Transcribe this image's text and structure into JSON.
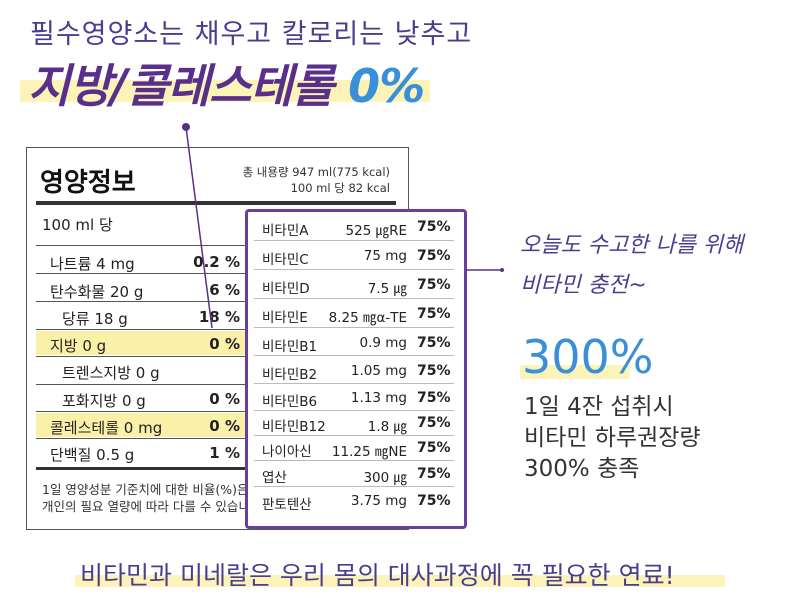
{
  "header": {
    "subtitle": "필수영양소는 채우고 칼로리는 낮추고",
    "headline_text": "지방/콜레스테롤 ",
    "headline_pct": "0%"
  },
  "nutrition": {
    "title": "영양정보",
    "meta_line1": "총 내용량 947 ml(775 kcal)",
    "meta_line2": "100 ml 당 82 kcal",
    "per": "100 ml 당",
    "rows": [
      {
        "name": "나트륨 4 mg",
        "value": "0.2 %"
      },
      {
        "name": "탄수화물 20 g",
        "value": "6 %"
      },
      {
        "name": "당류 18 g",
        "value": "18 %"
      },
      {
        "name": "지방 0 g",
        "value": "0 %"
      },
      {
        "name": "트렌스지방 0 g",
        "value": ""
      },
      {
        "name": "포화지방 0 g",
        "value": "0 %"
      },
      {
        "name": "콜레스테롤 0 mg",
        "value": "0 %"
      },
      {
        "name": "단백질 0.5 g",
        "value": "1 %"
      }
    ],
    "footnote1": "1일 영양성분 기준치에 대한 비율(%)은",
    "footnote2": "개인의 필요 열량에 따라 다를 수 있습니"
  },
  "vitamins": [
    {
      "name": "비타민A",
      "amount": "525 ㎍RE",
      "pct": "75%"
    },
    {
      "name": "비타민C",
      "amount": "75 mg",
      "pct": "75%"
    },
    {
      "name": "비타민D",
      "amount": "7.5 ㎍",
      "pct": "75%"
    },
    {
      "name": "비타민E",
      "amount": "8.25 ㎎α-TE",
      "pct": "75%"
    },
    {
      "name": "비타민B1",
      "amount": "0.9 mg",
      "pct": "75%"
    },
    {
      "name": "비타민B2",
      "amount": "1.05 mg",
      "pct": "75%"
    },
    {
      "name": "비타민B6",
      "amount": "1.13 mg",
      "pct": "75%"
    },
    {
      "name": "비타민B12",
      "amount": "1.8 ㎍",
      "pct": "75%"
    },
    {
      "name": "나이아신",
      "amount": "11.25 ㎎NE",
      "pct": "75%"
    },
    {
      "name": "엽산",
      "amount": "300 ㎍",
      "pct": "75%"
    },
    {
      "name": "판토텐산",
      "amount": "3.75 mg",
      "pct": "75%"
    }
  ],
  "side": {
    "script_line1": "오늘도 수고한 나를 위해",
    "script_line2": "비타민 충전~",
    "big": "300%",
    "desc1": "1일 4잔 섭취시",
    "desc2": "비타민 하루권장량",
    "desc3": "300% 충족"
  },
  "footer": {
    "text": "비타민과 미네랄은 우리 몸의 대사과정에 꼭 필요한 연료!"
  },
  "colors": {
    "purple": "#5a2f8a",
    "blue": "#3a8fd9",
    "highlight": "#fbf0a8"
  }
}
